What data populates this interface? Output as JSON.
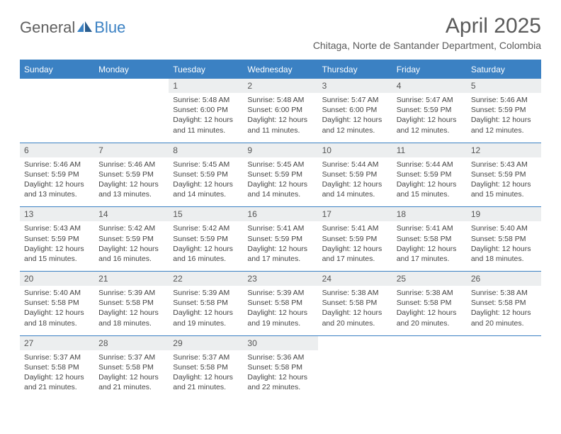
{
  "logo": {
    "text1": "General",
    "text2": "Blue"
  },
  "title": "April 2025",
  "subtitle": "Chitaga, Norte de Santander Department, Colombia",
  "weekdays": [
    "Sunday",
    "Monday",
    "Tuesday",
    "Wednesday",
    "Thursday",
    "Friday",
    "Saturday"
  ],
  "colors": {
    "accent": "#3b81c3",
    "header_bg": "#3b81c3",
    "daynum_bg": "#eceeef",
    "text": "#444",
    "title_text": "#5a5a5a"
  },
  "weeks": [
    {
      "nums": [
        "",
        "",
        "1",
        "2",
        "3",
        "4",
        "5"
      ],
      "cells": [
        "",
        "",
        "Sunrise: 5:48 AM\nSunset: 6:00 PM\nDaylight: 12 hours and 11 minutes.",
        "Sunrise: 5:48 AM\nSunset: 6:00 PM\nDaylight: 12 hours and 11 minutes.",
        "Sunrise: 5:47 AM\nSunset: 6:00 PM\nDaylight: 12 hours and 12 minutes.",
        "Sunrise: 5:47 AM\nSunset: 5:59 PM\nDaylight: 12 hours and 12 minutes.",
        "Sunrise: 5:46 AM\nSunset: 5:59 PM\nDaylight: 12 hours and 12 minutes."
      ]
    },
    {
      "nums": [
        "6",
        "7",
        "8",
        "9",
        "10",
        "11",
        "12"
      ],
      "cells": [
        "Sunrise: 5:46 AM\nSunset: 5:59 PM\nDaylight: 12 hours and 13 minutes.",
        "Sunrise: 5:46 AM\nSunset: 5:59 PM\nDaylight: 12 hours and 13 minutes.",
        "Sunrise: 5:45 AM\nSunset: 5:59 PM\nDaylight: 12 hours and 14 minutes.",
        "Sunrise: 5:45 AM\nSunset: 5:59 PM\nDaylight: 12 hours and 14 minutes.",
        "Sunrise: 5:44 AM\nSunset: 5:59 PM\nDaylight: 12 hours and 14 minutes.",
        "Sunrise: 5:44 AM\nSunset: 5:59 PM\nDaylight: 12 hours and 15 minutes.",
        "Sunrise: 5:43 AM\nSunset: 5:59 PM\nDaylight: 12 hours and 15 minutes."
      ]
    },
    {
      "nums": [
        "13",
        "14",
        "15",
        "16",
        "17",
        "18",
        "19"
      ],
      "cells": [
        "Sunrise: 5:43 AM\nSunset: 5:59 PM\nDaylight: 12 hours and 15 minutes.",
        "Sunrise: 5:42 AM\nSunset: 5:59 PM\nDaylight: 12 hours and 16 minutes.",
        "Sunrise: 5:42 AM\nSunset: 5:59 PM\nDaylight: 12 hours and 16 minutes.",
        "Sunrise: 5:41 AM\nSunset: 5:59 PM\nDaylight: 12 hours and 17 minutes.",
        "Sunrise: 5:41 AM\nSunset: 5:59 PM\nDaylight: 12 hours and 17 minutes.",
        "Sunrise: 5:41 AM\nSunset: 5:58 PM\nDaylight: 12 hours and 17 minutes.",
        "Sunrise: 5:40 AM\nSunset: 5:58 PM\nDaylight: 12 hours and 18 minutes."
      ]
    },
    {
      "nums": [
        "20",
        "21",
        "22",
        "23",
        "24",
        "25",
        "26"
      ],
      "cells": [
        "Sunrise: 5:40 AM\nSunset: 5:58 PM\nDaylight: 12 hours and 18 minutes.",
        "Sunrise: 5:39 AM\nSunset: 5:58 PM\nDaylight: 12 hours and 18 minutes.",
        "Sunrise: 5:39 AM\nSunset: 5:58 PM\nDaylight: 12 hours and 19 minutes.",
        "Sunrise: 5:39 AM\nSunset: 5:58 PM\nDaylight: 12 hours and 19 minutes.",
        "Sunrise: 5:38 AM\nSunset: 5:58 PM\nDaylight: 12 hours and 20 minutes.",
        "Sunrise: 5:38 AM\nSunset: 5:58 PM\nDaylight: 12 hours and 20 minutes.",
        "Sunrise: 5:38 AM\nSunset: 5:58 PM\nDaylight: 12 hours and 20 minutes."
      ]
    },
    {
      "nums": [
        "27",
        "28",
        "29",
        "30",
        "",
        "",
        ""
      ],
      "cells": [
        "Sunrise: 5:37 AM\nSunset: 5:58 PM\nDaylight: 12 hours and 21 minutes.",
        "Sunrise: 5:37 AM\nSunset: 5:58 PM\nDaylight: 12 hours and 21 minutes.",
        "Sunrise: 5:37 AM\nSunset: 5:58 PM\nDaylight: 12 hours and 21 minutes.",
        "Sunrise: 5:36 AM\nSunset: 5:58 PM\nDaylight: 12 hours and 22 minutes.",
        "",
        "",
        ""
      ]
    }
  ]
}
